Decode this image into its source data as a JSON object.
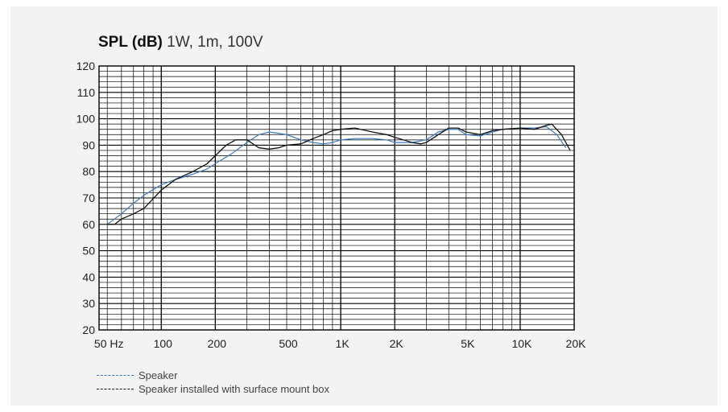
{
  "chart_data": {
    "type": "line",
    "title": "SPL (dB)",
    "subtitle": "1W, 1m, 100V",
    "xlabel": "",
    "ylabel": "",
    "xscale": "log",
    "xlim": [
      45,
      20000
    ],
    "ylim": [
      20,
      120
    ],
    "grid": true,
    "legend_position": "bottom-left",
    "x_tick_labels": [
      {
        "value": 50,
        "label": "50 Hz"
      },
      {
        "value": 100,
        "label": "100"
      },
      {
        "value": 200,
        "label": "200"
      },
      {
        "value": 500,
        "label": "500"
      },
      {
        "value": 1000,
        "label": "1K"
      },
      {
        "value": 2000,
        "label": "2K"
      },
      {
        "value": 5000,
        "label": "5K"
      },
      {
        "value": 10000,
        "label": "10K"
      },
      {
        "value": 20000,
        "label": "20K"
      }
    ],
    "y_tick_labels": [
      {
        "value": 20,
        "label": "20"
      },
      {
        "value": 30,
        "label": "30"
      },
      {
        "value": 40,
        "label": "40"
      },
      {
        "value": 50,
        "label": "50"
      },
      {
        "value": 60,
        "label": "60"
      },
      {
        "value": 70,
        "label": "70"
      },
      {
        "value": 80,
        "label": "80"
      },
      {
        "value": 90,
        "label": "90"
      },
      {
        "value": 100,
        "label": "100"
      },
      {
        "value": 110,
        "label": "110"
      },
      {
        "value": 120,
        "label": "120"
      }
    ],
    "series": [
      {
        "name": "Speaker",
        "color": "#3b78c2",
        "points": [
          [
            50,
            60
          ],
          [
            60,
            64
          ],
          [
            70,
            68
          ],
          [
            80,
            71
          ],
          [
            100,
            75
          ],
          [
            120,
            77
          ],
          [
            150,
            79
          ],
          [
            180,
            81
          ],
          [
            200,
            83
          ],
          [
            250,
            87
          ],
          [
            300,
            91
          ],
          [
            350,
            94
          ],
          [
            400,
            95
          ],
          [
            450,
            94.5
          ],
          [
            500,
            94
          ],
          [
            600,
            92
          ],
          [
            700,
            91
          ],
          [
            800,
            90.5
          ],
          [
            900,
            91
          ],
          [
            1000,
            92
          ],
          [
            1200,
            92.5
          ],
          [
            1500,
            92.5
          ],
          [
            1800,
            92
          ],
          [
            2000,
            91
          ],
          [
            2500,
            91
          ],
          [
            3000,
            92
          ],
          [
            3500,
            95
          ],
          [
            4000,
            96
          ],
          [
            4500,
            96
          ],
          [
            5000,
            94
          ],
          [
            6000,
            93.5
          ],
          [
            7000,
            95
          ],
          [
            8000,
            96
          ],
          [
            10000,
            96.5
          ],
          [
            12000,
            96.5
          ],
          [
            14000,
            97
          ],
          [
            16000,
            94
          ],
          [
            18000,
            89
          ]
        ]
      },
      {
        "name": "Speaker installed with surface mount box",
        "color": "#111111",
        "points": [
          [
            50,
            60
          ],
          [
            55,
            60
          ],
          [
            60,
            62
          ],
          [
            70,
            64
          ],
          [
            80,
            66
          ],
          [
            100,
            73
          ],
          [
            120,
            77
          ],
          [
            150,
            80
          ],
          [
            180,
            83
          ],
          [
            200,
            86
          ],
          [
            230,
            90
          ],
          [
            260,
            92
          ],
          [
            300,
            92
          ],
          [
            350,
            89
          ],
          [
            400,
            88.5
          ],
          [
            450,
            89
          ],
          [
            500,
            90
          ],
          [
            600,
            90.5
          ],
          [
            700,
            92.5
          ],
          [
            800,
            94
          ],
          [
            900,
            95.5
          ],
          [
            1000,
            96
          ],
          [
            1200,
            96.5
          ],
          [
            1500,
            95
          ],
          [
            1800,
            94
          ],
          [
            2000,
            93
          ],
          [
            2500,
            91
          ],
          [
            2800,
            90.5
          ],
          [
            3000,
            91
          ],
          [
            3500,
            94
          ],
          [
            4000,
            96.5
          ],
          [
            4500,
            96.5
          ],
          [
            5000,
            95
          ],
          [
            6000,
            94
          ],
          [
            7000,
            95.5
          ],
          [
            8000,
            96
          ],
          [
            10000,
            96.5
          ],
          [
            12000,
            96
          ],
          [
            14000,
            97.5
          ],
          [
            15000,
            98
          ],
          [
            17000,
            94
          ],
          [
            19000,
            88
          ]
        ]
      }
    ]
  }
}
